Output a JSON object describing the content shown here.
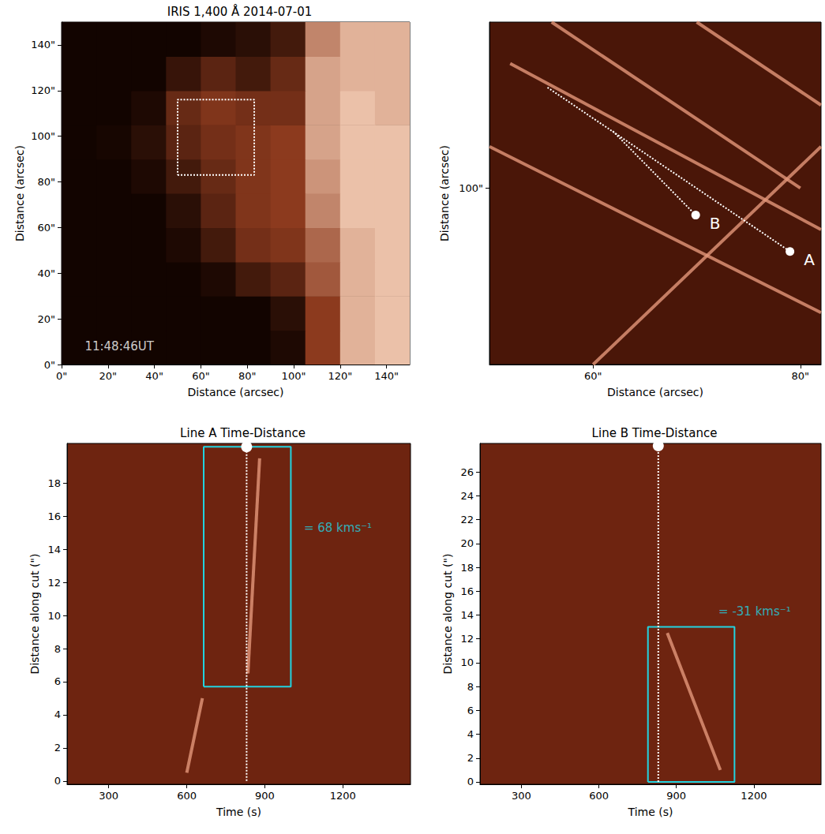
{
  "chart_data": [
    {
      "type": "heatmap",
      "title": "IRIS 1,400 Å 2014-07-01",
      "xlabel": "Distance (arcsec)",
      "ylabel": "Distance (arcsec)",
      "xlim": [
        0,
        150
      ],
      "ylim": [
        0,
        150
      ],
      "xticks": [
        {
          "value": 0,
          "label": "0\""
        },
        {
          "value": 20,
          "label": "20\""
        },
        {
          "value": 40,
          "label": "40\""
        },
        {
          "value": 60,
          "label": "60\""
        },
        {
          "value": 80,
          "label": "80\""
        },
        {
          "value": 100,
          "label": "100\""
        },
        {
          "value": 120,
          "label": "120\""
        },
        {
          "value": 140,
          "label": "140\""
        }
      ],
      "yticks": [
        {
          "value": 0,
          "label": "0\""
        },
        {
          "value": 20,
          "label": "20\""
        },
        {
          "value": 40,
          "label": "40\""
        },
        {
          "value": 60,
          "label": "60\""
        },
        {
          "value": 80,
          "label": "80\""
        },
        {
          "value": 100,
          "label": "100\""
        },
        {
          "value": 120,
          "label": "120\""
        },
        {
          "value": 140,
          "label": "140\""
        }
      ],
      "intensity": {
        "range": [
          0,
          1
        ],
        "x_edges": [
          0,
          15,
          30,
          45,
          60,
          75,
          90,
          105,
          120,
          135,
          150
        ],
        "y_edges": [
          0,
          15,
          30,
          45,
          60,
          75,
          90,
          105,
          120,
          135,
          150
        ],
        "cells": [
          [
            0,
            0,
            0,
            0,
            0,
            0,
            0.05,
            0.5,
            0.9,
            0.95
          ],
          [
            0,
            0,
            0,
            0,
            0,
            0,
            0.1,
            0.5,
            0.9,
            0.95
          ],
          [
            0,
            0,
            0,
            0,
            0.05,
            0.2,
            0.3,
            0.6,
            0.9,
            0.95
          ],
          [
            0,
            0,
            0,
            0.05,
            0.2,
            0.4,
            0.45,
            0.65,
            0.9,
            0.95
          ],
          [
            0,
            0,
            0,
            0.1,
            0.3,
            0.45,
            0.5,
            0.75,
            0.95,
            0.95
          ],
          [
            0,
            0,
            0.05,
            0.2,
            0.35,
            0.45,
            0.5,
            0.8,
            0.95,
            0.95
          ],
          [
            0,
            0.02,
            0.1,
            0.3,
            0.4,
            0.45,
            0.5,
            0.85,
            0.95,
            0.95
          ],
          [
            0,
            0,
            0.05,
            0.35,
            0.45,
            0.4,
            0.4,
            0.85,
            0.95,
            0.9
          ],
          [
            0,
            0,
            0,
            0.15,
            0.3,
            0.2,
            0.35,
            0.85,
            0.9,
            0.9
          ],
          [
            0,
            0,
            0,
            0,
            0.05,
            0.1,
            0.2,
            0.75,
            0.9,
            0.9
          ]
        ]
      },
      "box": {
        "x": [
          50,
          83
        ],
        "y": [
          83,
          116
        ],
        "color": "#ffffff"
      },
      "annotations": [
        {
          "text": "11:48:46UT",
          "x": 10,
          "y": 8,
          "color": "#ffffff"
        }
      ]
    },
    {
      "type": "line",
      "xlabel": "Distance (arcsec)",
      "ylabel": "Distance (arcsec)",
      "xlim": [
        50,
        82
      ],
      "ylim": [
        83,
        116
      ],
      "xticks": [
        {
          "value": 60,
          "label": "60\""
        },
        {
          "value": 80,
          "label": "80\""
        }
      ],
      "yticks": [
        {
          "value": 100,
          "label": "100\""
        }
      ],
      "features": [
        [
          [
            50,
            104
          ],
          [
            82,
            88
          ]
        ],
        [
          [
            52,
            112
          ],
          [
            82,
            96
          ]
        ],
        [
          [
            56,
            116
          ],
          [
            80,
            100
          ]
        ],
        [
          [
            60,
            83
          ],
          [
            82,
            104
          ]
        ],
        [
          [
            70,
            116
          ],
          [
            82,
            108
          ]
        ]
      ],
      "cuts": [
        {
          "name": "A",
          "points": [
            [
              55.6,
              109.7
            ],
            [
              79.0,
              93.9
            ]
          ]
        },
        {
          "name": "B",
          "points": [
            [
              61.9,
              105.5
            ],
            [
              69.9,
              97.4
            ]
          ]
        }
      ]
    },
    {
      "type": "line",
      "title": "Line A Time-Distance",
      "xlabel": "Time (s)",
      "ylabel": "Distance along cut (\")",
      "xlim": [
        140,
        1460
      ],
      "ylim": [
        -0.2,
        20.4
      ],
      "xticks": [
        300,
        600,
        900,
        1200
      ],
      "yticks": [
        0,
        2,
        4,
        6,
        8,
        10,
        12,
        14,
        16,
        18
      ],
      "features": [
        [
          [
            835,
            6.5
          ],
          [
            880,
            19.5
          ]
        ],
        [
          [
            600,
            0.5
          ],
          [
            660,
            5
          ]
        ]
      ],
      "time_marker": {
        "x": 830,
        "y": [
          0,
          20.2
        ]
      },
      "rectangle": {
        "x": [
          665,
          1000
        ],
        "y": [
          5.7,
          20.2
        ],
        "color": "#22d3e0"
      },
      "annotations": [
        {
          "text": "= 68 kms⁻¹",
          "x": 1050,
          "y": 15.3,
          "color": "#22d3e0"
        }
      ]
    },
    {
      "type": "line",
      "title": "Line B Time-Distance",
      "xlabel": "Time (s)",
      "ylabel": "Distance along cut (\")",
      "xlim": [
        140,
        1460
      ],
      "ylim": [
        -0.2,
        28.4
      ],
      "xticks": [
        300,
        600,
        900,
        1200
      ],
      "yticks": [
        0,
        2,
        4,
        6,
        8,
        10,
        12,
        14,
        16,
        18,
        20,
        22,
        24,
        26
      ],
      "features": [
        [
          [
            865,
            12.5
          ],
          [
            1070,
            1
          ]
        ]
      ],
      "time_marker": {
        "x": 830,
        "y": [
          0,
          28.2
        ]
      },
      "rectangle": {
        "x": [
          790,
          1125
        ],
        "y": [
          0,
          13
        ],
        "color": "#22d3e0"
      },
      "annotations": [
        {
          "text": "= -31 kms⁻¹",
          "x": 1063,
          "y": 14.3,
          "color": "#22d3e0"
        }
      ]
    }
  ]
}
